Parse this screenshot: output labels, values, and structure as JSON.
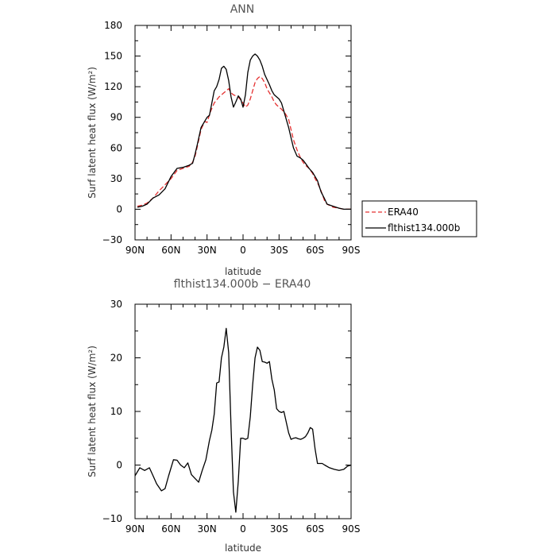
{
  "chart_data": [
    {
      "type": "line",
      "title": "ANN",
      "xlabel": "latitude",
      "ylabel": "Surf latent heat flux (W/m²)",
      "ylim": [
        -30,
        180
      ],
      "xlim": [
        -90,
        90
      ],
      "xticks": [
        -90,
        -60,
        -30,
        0,
        30,
        60,
        90
      ],
      "xtick_labels": [
        "90N",
        "60N",
        "30N",
        "0",
        "30S",
        "60S",
        "90S"
      ],
      "yticks": [
        -30,
        0,
        30,
        60,
        90,
        120,
        150,
        180
      ],
      "ytick_labels": [
        "−30",
        "0",
        "30",
        "60",
        "90",
        "120",
        "150",
        "180"
      ],
      "legend": "right",
      "series": [
        {
          "name": "ERA40",
          "color": "#e53030",
          "dash": "dashed",
          "x": [
            -88,
            -84,
            -80,
            -75,
            -70,
            -65,
            -60,
            -55,
            -50,
            -45,
            -42,
            -40,
            -38,
            -35,
            -32,
            -30,
            -27,
            -24,
            -20,
            -16,
            -12,
            -10,
            -8,
            -6,
            -4,
            -2,
            0,
            2,
            4,
            6,
            8,
            10,
            12,
            14,
            16,
            18,
            20,
            22,
            24,
            26,
            28,
            30,
            32,
            35,
            38,
            40,
            42,
            45,
            48,
            50,
            52,
            55,
            58,
            60,
            62,
            65,
            68,
            70,
            75,
            80,
            84,
            88,
            90
          ],
          "y": [
            3,
            4,
            6,
            11,
            18,
            24,
            30,
            38,
            40,
            42,
            46,
            52,
            62,
            78,
            86,
            85,
            96,
            104,
            110,
            114,
            118,
            114,
            112,
            111,
            110,
            107,
            104,
            100,
            102,
            108,
            116,
            124,
            128,
            130,
            128,
            124,
            118,
            114,
            110,
            105,
            102,
            100,
            98,
            94,
            88,
            78,
            68,
            58,
            50,
            46,
            43,
            40,
            35,
            30,
            26,
            18,
            8,
            5,
            2,
            1,
            0,
            0,
            0
          ]
        },
        {
          "name": "flthist134.000b",
          "color": "#000000",
          "dash": "solid",
          "x": [
            -88,
            -84,
            -80,
            -75,
            -70,
            -65,
            -60,
            -55,
            -50,
            -45,
            -42,
            -40,
            -38,
            -35,
            -32,
            -30,
            -28,
            -26,
            -24,
            -22,
            -20,
            -18,
            -16,
            -14,
            -12,
            -10,
            -8,
            -6,
            -4,
            -2,
            0,
            2,
            4,
            6,
            8,
            10,
            12,
            14,
            16,
            18,
            20,
            22,
            24,
            26,
            28,
            30,
            32,
            35,
            38,
            40,
            42,
            45,
            48,
            50,
            52,
            55,
            58,
            60,
            62,
            65,
            68,
            70,
            75,
            80,
            84,
            88,
            90
          ],
          "y": [
            2,
            3,
            5,
            11,
            14,
            20,
            32,
            40,
            41,
            43,
            45,
            54,
            64,
            80,
            86,
            90,
            92,
            104,
            116,
            120,
            127,
            138,
            140,
            137,
            126,
            110,
            100,
            105,
            111,
            108,
            100,
            112,
            134,
            146,
            150,
            152,
            150,
            146,
            140,
            132,
            127,
            122,
            116,
            112,
            110,
            108,
            104,
            92,
            80,
            70,
            60,
            52,
            50,
            48,
            45,
            40,
            36,
            32,
            28,
            17,
            10,
            5,
            3,
            1,
            0,
            0,
            0
          ]
        }
      ]
    },
    {
      "type": "line",
      "title": "flthist134.000b − ERA40",
      "xlabel": "latitude",
      "ylabel": "Surf latent heat flux (W/m²)",
      "ylim": [
        -10,
        30
      ],
      "xlim": [
        -90,
        90
      ],
      "xticks": [
        -90,
        -60,
        -30,
        0,
        30,
        60,
        90
      ],
      "xtick_labels": [
        "90N",
        "60N",
        "30N",
        "0",
        "30S",
        "60S",
        "90S"
      ],
      "yticks": [
        -10,
        0,
        10,
        20,
        30
      ],
      "ytick_labels": [
        "−10",
        "0",
        "10",
        "20",
        "30"
      ],
      "series": [
        {
          "color": "#000000",
          "dash": "solid",
          "x": [
            -90,
            -86,
            -82,
            -78,
            -75,
            -72,
            -68,
            -65,
            -62,
            -58,
            -55,
            -52,
            -49,
            -46,
            -43,
            -40,
            -37,
            -34,
            -31,
            -28,
            -26,
            -24,
            -22,
            -20,
            -18,
            -16,
            -14,
            -12,
            -10,
            -8,
            -6,
            -4,
            -3,
            -2,
            0,
            2,
            4,
            6,
            8,
            10,
            12,
            14,
            16,
            18,
            20,
            22,
            24,
            26,
            28,
            30,
            32,
            34,
            36,
            38,
            40,
            42,
            44,
            46,
            48,
            50,
            52,
            54,
            56,
            58,
            60,
            62,
            64,
            66,
            68,
            72,
            76,
            80,
            84,
            87,
            90
          ],
          "y": [
            -2,
            -0.5,
            -1,
            -0.5,
            -2,
            -3.5,
            -4.8,
            -4.4,
            -2,
            1,
            0.9,
            0,
            -0.5,
            0.4,
            -1.8,
            -2.5,
            -3.2,
            -1,
            1,
            4.6,
            6.5,
            9.5,
            15.3,
            15.5,
            20,
            22,
            25.5,
            21,
            7,
            -5,
            -8.8,
            -3,
            1,
            5,
            5,
            4.8,
            5,
            9,
            15,
            20,
            22,
            21.4,
            19.3,
            19.2,
            19,
            19.3,
            16,
            14,
            10.5,
            10,
            9.8,
            10,
            8,
            6,
            4.8,
            5,
            5.1,
            4.9,
            4.8,
            5,
            5.3,
            6,
            7,
            6.7,
            3,
            0.3,
            0.3,
            0.3,
            0,
            -0.5,
            -0.8,
            -1,
            -0.8,
            -0.2,
            0
          ]
        }
      ]
    }
  ]
}
